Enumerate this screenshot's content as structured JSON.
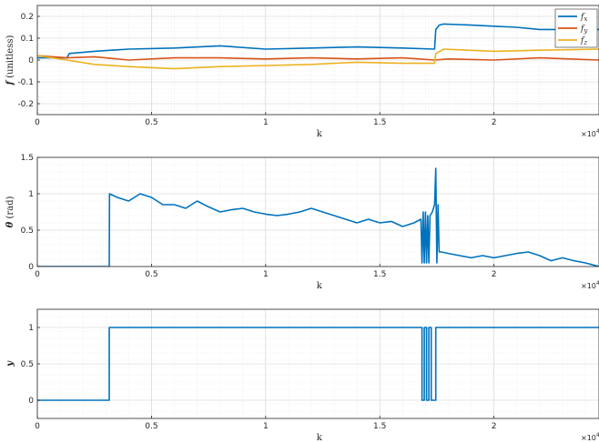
{
  "chart_data": [
    {
      "type": "line",
      "xlabel": "k",
      "ylabel_bold": "f",
      "ylabel_rest": " (unitless)",
      "x_multiplier": "×10",
      "x_multiplier_exp": "4",
      "xlim": [
        0,
        24600
      ],
      "ylim": [
        -0.25,
        0.25
      ],
      "x_ticks": [
        0,
        5000,
        10000,
        15000,
        20000
      ],
      "x_tick_labels": [
        "0",
        "0.5",
        "1",
        "1.5",
        "2"
      ],
      "y_ticks": [
        -0.2,
        -0.1,
        0,
        0.1,
        0.2
      ],
      "y_tick_labels": [
        "-0.2",
        "-0.1",
        "0",
        "0.1",
        "0.2"
      ],
      "grid": true,
      "legend_position": "top-right",
      "series": [
        {
          "name": "f_x",
          "label_main": "f",
          "label_sub": "x",
          "color": "#0072BD",
          "x": [
            0,
            1300,
            1400,
            2500,
            4000,
            6000,
            8000,
            10000,
            12000,
            14000,
            16000,
            17400,
            17450,
            17600,
            17800,
            19000,
            20000,
            21000,
            22000,
            23000,
            24600
          ],
          "y": [
            0.01,
            0.01,
            0.03,
            0.04,
            0.05,
            0.055,
            0.065,
            0.05,
            0.055,
            0.06,
            0.055,
            0.05,
            0.14,
            0.16,
            0.165,
            0.16,
            0.155,
            0.15,
            0.14,
            0.14,
            0.14
          ]
        },
        {
          "name": "f_y",
          "label_main": "f",
          "label_sub": "y",
          "color": "#D95319",
          "x": [
            0,
            1300,
            2500,
            4000,
            6000,
            8000,
            10000,
            12000,
            14000,
            16000,
            17400,
            18000,
            20000,
            22000,
            24600
          ],
          "y": [
            0.02,
            0.01,
            0.015,
            0.0,
            0.01,
            0.01,
            0.005,
            0.01,
            0.005,
            0.01,
            0.0,
            0.005,
            0.0,
            0.01,
            0.0
          ]
        },
        {
          "name": "f_z",
          "label_main": "f",
          "label_sub": "z",
          "color": "#EDB120",
          "x": [
            0,
            1300,
            2500,
            4000,
            6000,
            8000,
            10000,
            12000,
            14000,
            16000,
            17400,
            17450,
            17800,
            20000,
            22000,
            24600
          ],
          "y": [
            0.02,
            0.0,
            -0.02,
            -0.03,
            -0.04,
            -0.03,
            -0.025,
            -0.02,
            -0.01,
            -0.015,
            -0.015,
            0.03,
            0.05,
            0.04,
            0.045,
            0.05
          ]
        }
      ]
    },
    {
      "type": "line",
      "xlabel": "k",
      "ylabel_bold": "θ",
      "ylabel_rest": " (rad)",
      "x_multiplier": "×10",
      "x_multiplier_exp": "4",
      "xlim": [
        0,
        24600
      ],
      "ylim": [
        0,
        1.5
      ],
      "x_ticks": [
        0,
        5000,
        10000,
        15000,
        20000
      ],
      "x_tick_labels": [
        "0",
        "0.5",
        "1",
        "1.5",
        "2"
      ],
      "y_ticks": [
        0,
        0.5,
        1,
        1.5
      ],
      "y_tick_labels": [
        "0",
        "0.5",
        "1",
        "1.5"
      ],
      "grid": true,
      "series": [
        {
          "color": "#0072BD",
          "x": [
            0,
            3150,
            3160,
            3500,
            4000,
            4500,
            5000,
            5500,
            6000,
            6500,
            7000,
            7500,
            8000,
            8500,
            9000,
            9500,
            10000,
            10500,
            11000,
            11500,
            12000,
            12500,
            13000,
            13500,
            14000,
            14500,
            15000,
            15500,
            16000,
            16500,
            16800,
            16850,
            16900,
            16950,
            17000,
            17050,
            17100,
            17150,
            17200,
            17300,
            17400,
            17450,
            17500,
            17550,
            17600,
            17700,
            18000,
            18500,
            19000,
            19500,
            20000,
            20500,
            21000,
            21500,
            22000,
            22500,
            23000,
            23500,
            24000,
            24600
          ],
          "y": [
            0,
            0,
            1.0,
            0.95,
            0.9,
            1.0,
            0.95,
            0.85,
            0.85,
            0.8,
            0.9,
            0.82,
            0.75,
            0.78,
            0.8,
            0.75,
            0.72,
            0.7,
            0.72,
            0.75,
            0.8,
            0.75,
            0.7,
            0.65,
            0.6,
            0.65,
            0.6,
            0.62,
            0.55,
            0.6,
            0.65,
            0.05,
            0.75,
            0.05,
            0.75,
            0.05,
            0.7,
            0.05,
            0.7,
            0.75,
            0.85,
            1.35,
            0.05,
            0.85,
            0.2,
            0.2,
            0.18,
            0.15,
            0.12,
            0.15,
            0.12,
            0.15,
            0.18,
            0.2,
            0.15,
            0.08,
            0.12,
            0.08,
            0.05,
            0.0
          ]
        }
      ]
    },
    {
      "type": "line",
      "xlabel": "k",
      "ylabel_bold": "y",
      "ylabel_rest": "",
      "x_multiplier": "×10",
      "x_multiplier_exp": "4",
      "xlim": [
        0,
        24600
      ],
      "ylim": [
        -0.25,
        1.25
      ],
      "x_ticks": [
        0,
        5000,
        10000,
        15000,
        20000
      ],
      "x_tick_labels": [
        "0",
        "0.5",
        "1",
        "1.5",
        "2"
      ],
      "y_ticks": [
        0,
        0.5,
        1
      ],
      "y_tick_labels": [
        "0",
        "0.5",
        "1"
      ],
      "grid": true,
      "series": [
        {
          "color": "#0072BD",
          "x": [
            0,
            3150,
            3150,
            16850,
            16850,
            16950,
            16950,
            17050,
            17050,
            17150,
            17150,
            17250,
            17250,
            17450,
            17450,
            17500,
            17500,
            24600
          ],
          "y": [
            0,
            0,
            1,
            1,
            0,
            0,
            1,
            1,
            0,
            0,
            1,
            1,
            0,
            0,
            1,
            1,
            1,
            1
          ]
        }
      ]
    }
  ]
}
